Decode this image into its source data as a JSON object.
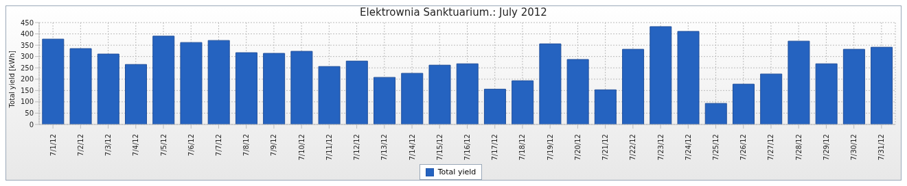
{
  "chart_data": {
    "type": "bar",
    "title": "Elektrownia Sanktuarium.: July 2012",
    "ylabel": "Total yield [kWh]",
    "categories": [
      "7/1/12",
      "7/2/12",
      "7/3/12",
      "7/4/12",
      "7/5/12",
      "7/6/12",
      "7/7/12",
      "7/8/12",
      "7/9/12",
      "7/10/12",
      "7/11/12",
      "7/12/12",
      "7/13/12",
      "7/14/12",
      "7/15/12",
      "7/16/12",
      "7/17/12",
      "7/18/12",
      "7/19/12",
      "7/20/12",
      "7/21/12",
      "7/22/12",
      "7/23/12",
      "7/24/12",
      "7/25/12",
      "7/26/12",
      "7/27/12",
      "7/28/12",
      "7/29/12",
      "7/30/12",
      "7/31/12"
    ],
    "series": [
      {
        "name": "Total yield",
        "color": "#2563c0",
        "values": [
          377,
          335,
          311,
          265,
          390,
          362,
          371,
          317,
          314,
          323,
          256,
          280,
          208,
          226,
          262,
          268,
          156,
          193,
          356,
          287,
          153,
          332,
          432,
          411,
          93,
          178,
          223,
          368,
          268,
          332,
          341
        ]
      }
    ],
    "ylim": [
      0,
      450
    ],
    "yticks": [
      0,
      50,
      100,
      150,
      200,
      250,
      300,
      350,
      400,
      450
    ],
    "grid": true,
    "legend": "bottom"
  }
}
